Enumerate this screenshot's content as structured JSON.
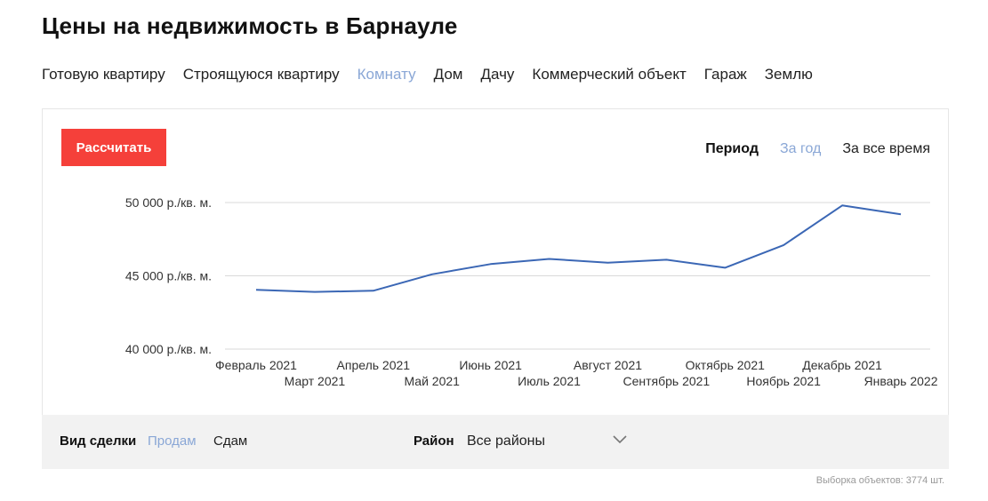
{
  "page": {
    "title": "Цены на недвижимость в Барнауле"
  },
  "property_tabs": [
    {
      "label": "Готовую квартиру",
      "active": false
    },
    {
      "label": "Строящуюся квартиру",
      "active": false
    },
    {
      "label": "Комнату",
      "active": true
    },
    {
      "label": "Дом",
      "active": false
    },
    {
      "label": "Дачу",
      "active": false
    },
    {
      "label": "Коммерческий объект",
      "active": false
    },
    {
      "label": "Гараж",
      "active": false
    },
    {
      "label": "Землю",
      "active": false
    }
  ],
  "toolbar": {
    "calculate_label": "Рассчитать",
    "period_label": "Период",
    "period_options": [
      {
        "label": "За год",
        "active": true
      },
      {
        "label": "За все время",
        "active": false
      }
    ]
  },
  "chart_data": {
    "type": "line",
    "categories": [
      "Февраль 2021",
      "Март 2021",
      "Апрель 2021",
      "Май 2021",
      "Июнь 2021",
      "Июль 2021",
      "Август 2021",
      "Сентябрь 2021",
      "Октябрь 2021",
      "Ноябрь 2021",
      "Декабрь 2021",
      "Январь 2022"
    ],
    "series": [
      {
        "values": [
          44050,
          43900,
          43980,
          45100,
          45800,
          46150,
          45900,
          46100,
          45550,
          47100,
          49800,
          49200
        ]
      }
    ],
    "y_ticks": [
      {
        "value": 40000,
        "label": "40 000 р./кв. м."
      },
      {
        "value": 45000,
        "label": "45 000 р./кв. м."
      },
      {
        "value": 50000,
        "label": "50 000 р./кв. м."
      }
    ],
    "ylim": [
      40000,
      50000
    ],
    "line_color": "#3b67b5",
    "grid": true
  },
  "filters": {
    "deal_label": "Вид сделки",
    "deal_options": [
      {
        "label": "Продам",
        "active": true
      },
      {
        "label": "Сдам",
        "active": false
      }
    ],
    "district_label": "Район",
    "district_value": "Все районы",
    "chevron_icon": "chevron-down-icon"
  },
  "footer": {
    "sample_count": "Выборка объектов: 3774 шт."
  },
  "colors": {
    "accent": "#f5403a",
    "active_link": "#8aa7d6"
  }
}
